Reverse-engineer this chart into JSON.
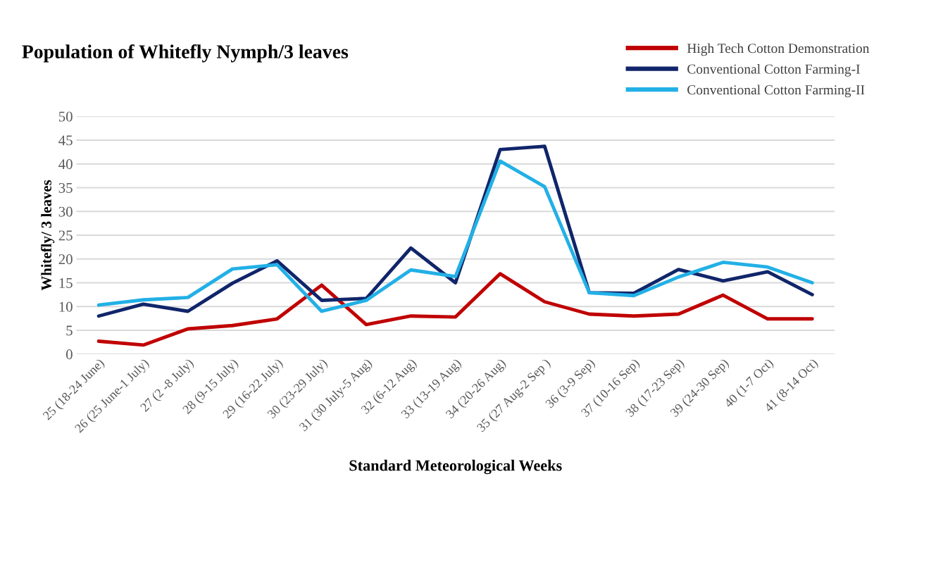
{
  "chart_data": {
    "type": "line",
    "title": "Population of Whitefly Nymph/3 leaves",
    "xlabel": "Standard Meteorological Weeks",
    "ylabel": "Whitefly/ 3 leaves",
    "categories": [
      "25 (18-24 June)",
      "26 (25 June-1 July)",
      "27 (2 -8 July)",
      "28 (9-15 July)",
      "29 (16-22 July)",
      "30 (23-29 July)",
      "31 (30 July-5 Aug)",
      "32 (6-12 Aug)",
      "33 (13-19 Aug)",
      "34 (20-26 Aug)",
      "35 (27 Aug-2 Sep )",
      "36 (3-9 Sep)",
      "37 (10-16 Sep)",
      "38 (17-23 Sep)",
      "39 (24-30 Sep)",
      "40 (1-7 Oct)",
      "41 (8-14 Oct)"
    ],
    "series": [
      {
        "name": "High Tech Cotton Demonstration",
        "color": "#c00000",
        "values": [
          2.7,
          1.9,
          5.3,
          6.0,
          7.4,
          14.5,
          6.2,
          8.0,
          7.8,
          16.9,
          11.0,
          8.4,
          8.0,
          8.4,
          12.4,
          7.4,
          7.4
        ]
      },
      {
        "name": "Conventional Cotton Farming-I",
        "color": "#10256a",
        "values": [
          8.0,
          10.5,
          9.0,
          14.9,
          19.6,
          11.3,
          11.7,
          22.3,
          15.0,
          43.0,
          43.7,
          12.9,
          12.8,
          17.8,
          15.4,
          17.3,
          12.5
        ]
      },
      {
        "name": "Conventional Cotton Farming-II",
        "color": "#22b0e6",
        "values": [
          10.3,
          11.4,
          11.9,
          17.9,
          18.8,
          9.0,
          11.3,
          17.7,
          16.3,
          40.6,
          35.2,
          12.9,
          12.3,
          16.2,
          19.3,
          18.3,
          15.0
        ]
      }
    ],
    "ylim": [
      0,
      50
    ],
    "yticks": [
      0,
      5,
      10,
      15,
      20,
      25,
      30,
      35,
      40,
      45,
      50
    ],
    "grid": "y",
    "legend": "top right",
    "marker": "none",
    "line_style": "solid"
  }
}
